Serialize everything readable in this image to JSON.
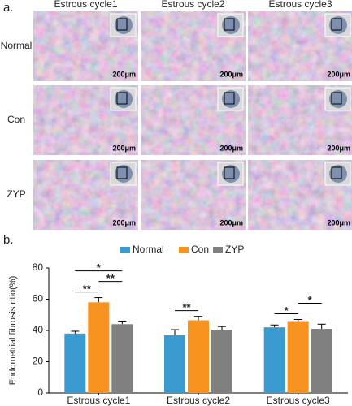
{
  "panel_a": {
    "label": "a.",
    "columns": [
      "Estrous cycle1",
      "Estrous cycle2",
      "Estrous cycle3"
    ],
    "rows": [
      "Normal",
      "Con",
      "ZYP"
    ],
    "scale_bar": "200μm"
  },
  "chart_data": {
    "type": "bar",
    "panel_label": "b.",
    "ylabel": "Endometrial fibrosis ritio(%)",
    "categories": [
      "Estrous cycle1",
      "Estrous cycle2",
      "Estrous cycle3"
    ],
    "series": [
      {
        "name": "Normal",
        "color": "#3a9bd0",
        "values": [
          38,
          37,
          42
        ],
        "errors": [
          1.5,
          3.5,
          1.5
        ]
      },
      {
        "name": "Con",
        "color": "#f7931e",
        "values": [
          58,
          46.5,
          46
        ],
        "errors": [
          3,
          2.5,
          1
        ]
      },
      {
        "name": "ZYP",
        "color": "#808080",
        "values": [
          44,
          40.5,
          41
        ],
        "errors": [
          2,
          2,
          3
        ]
      }
    ],
    "comparisons": [
      {
        "category": 0,
        "pair": [
          0,
          1
        ],
        "label": "**"
      },
      {
        "category": 0,
        "pair": [
          1,
          2
        ],
        "label": "**"
      },
      {
        "category": 0,
        "pair": [
          0,
          2
        ],
        "label": "*"
      },
      {
        "category": 1,
        "pair": [
          0,
          1
        ],
        "label": "**"
      },
      {
        "category": 2,
        "pair": [
          0,
          1
        ],
        "label": "*"
      },
      {
        "category": 2,
        "pair": [
          1,
          2
        ],
        "label": "*"
      }
    ],
    "ylim": [
      0,
      80
    ],
    "yticks": [
      0,
      20,
      40,
      60,
      80
    ],
    "legend": "top"
  }
}
